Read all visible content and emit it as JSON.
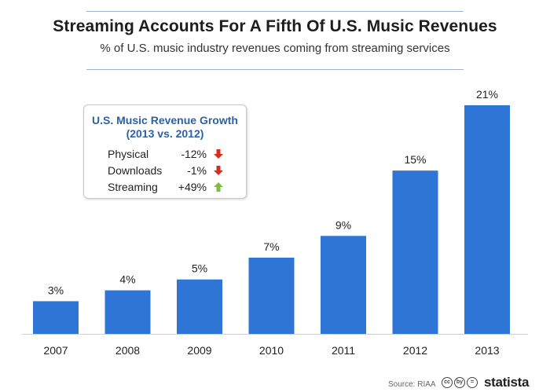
{
  "title": "Streaming Accounts For A Fifth Of U.S. Music Revenues",
  "subtitle": "% of U.S. music industry revenues coming from streaming services",
  "infobox": {
    "title_line1": "U.S. Music Revenue Growth",
    "title_line2": "(2013 vs. 2012)",
    "rows": [
      {
        "label": "Physical",
        "value": "-12%",
        "direction": "down",
        "icon": "arrow-down-icon",
        "color": "#d62d20"
      },
      {
        "label": "Downloads",
        "value": "-1%",
        "direction": "down",
        "icon": "arrow-down-icon",
        "color": "#d62d20"
      },
      {
        "label": "Streaming",
        "value": "+49%",
        "direction": "up",
        "icon": "arrow-up-icon",
        "color": "#7bbf3a"
      }
    ]
  },
  "source": "Source: RIAA",
  "brand": "statista",
  "cc_icons": [
    "cc",
    "by",
    "="
  ],
  "chart_data": {
    "type": "bar",
    "categories": [
      "2007",
      "2008",
      "2009",
      "2010",
      "2011",
      "2012",
      "2013"
    ],
    "values": [
      3,
      4,
      5,
      7,
      9,
      15,
      21
    ],
    "data_labels": [
      "3%",
      "4%",
      "5%",
      "7%",
      "9%",
      "15%",
      "21%"
    ],
    "title": "Streaming Accounts For A Fifth Of U.S. Music Revenues",
    "subtitle": "% of U.S. music industry revenues coming from streaming services",
    "unit": "%",
    "ylim": [
      0,
      21
    ],
    "grid": false,
    "bar_color": "#2e75d6"
  }
}
